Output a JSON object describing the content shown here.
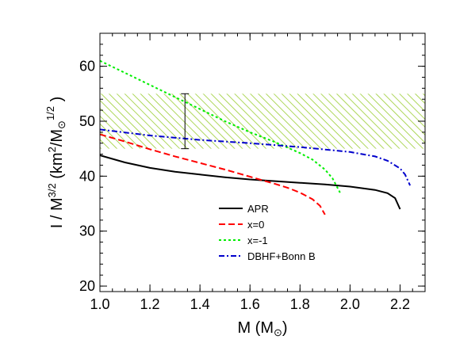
{
  "chart_data": {
    "type": "line",
    "xlabel": "M (M☉)",
    "ylabel": "I / M3/2 (km2/M☉1/2 )",
    "xlim": [
      1.0,
      2.3
    ],
    "ylim": [
      19,
      66
    ],
    "xticks": [
      1.0,
      1.2,
      1.4,
      1.6,
      1.8,
      2.0,
      2.2
    ],
    "xtick_labels": [
      "1.0",
      "1.2",
      "1.4",
      "1.6",
      "1.8",
      "2.0",
      "2.2"
    ],
    "yticks": [
      20,
      30,
      40,
      50,
      60
    ],
    "ytick_labels": [
      "20",
      "30",
      "40",
      "50",
      "60"
    ],
    "grid": false,
    "legend_position": "lower-right",
    "band": {
      "y_range": [
        45,
        55
      ],
      "color": "#9ACD32",
      "style": "hatched"
    },
    "error_bar": {
      "x": 1.34,
      "y_range": [
        45,
        55
      ],
      "color": "#000000"
    },
    "series": [
      {
        "name": "APR",
        "color": "#000000",
        "style": "solid",
        "x": [
          1.0,
          1.1,
          1.2,
          1.3,
          1.4,
          1.5,
          1.6,
          1.7,
          1.8,
          1.9,
          2.0,
          2.1,
          2.15,
          2.18,
          2.2
        ],
        "y": [
          43.8,
          42.5,
          41.5,
          40.8,
          40.3,
          39.8,
          39.4,
          39.1,
          38.8,
          38.5,
          38.1,
          37.5,
          36.9,
          36.0,
          34.0
        ]
      },
      {
        "name": "x=0",
        "color": "#FF0000",
        "style": "dashed",
        "x": [
          1.0,
          1.1,
          1.2,
          1.3,
          1.4,
          1.5,
          1.6,
          1.7,
          1.75,
          1.8,
          1.85,
          1.88,
          1.9
        ],
        "y": [
          47.6,
          46.3,
          44.9,
          43.6,
          42.4,
          41.2,
          39.9,
          38.6,
          37.9,
          37.0,
          35.8,
          34.6,
          33.0
        ]
      },
      {
        "name": "x=-1",
        "color": "#00EE00",
        "style": "dotted",
        "x": [
          1.0,
          1.1,
          1.2,
          1.3,
          1.4,
          1.5,
          1.6,
          1.7,
          1.8,
          1.85,
          1.9,
          1.93,
          1.96
        ],
        "y": [
          61.0,
          58.8,
          56.6,
          54.4,
          52.2,
          50.0,
          48.0,
          46.2,
          44.2,
          43.0,
          41.2,
          39.6,
          37.0
        ]
      },
      {
        "name": "DBHF+Bonn B",
        "color": "#0000CC",
        "style": "dashdot",
        "x": [
          1.0,
          1.2,
          1.4,
          1.6,
          1.8,
          2.0,
          2.1,
          2.15,
          2.2,
          2.22,
          2.24
        ],
        "y": [
          48.5,
          47.4,
          46.6,
          46.0,
          45.3,
          44.4,
          43.6,
          42.8,
          41.4,
          40.3,
          38.3
        ]
      }
    ]
  }
}
